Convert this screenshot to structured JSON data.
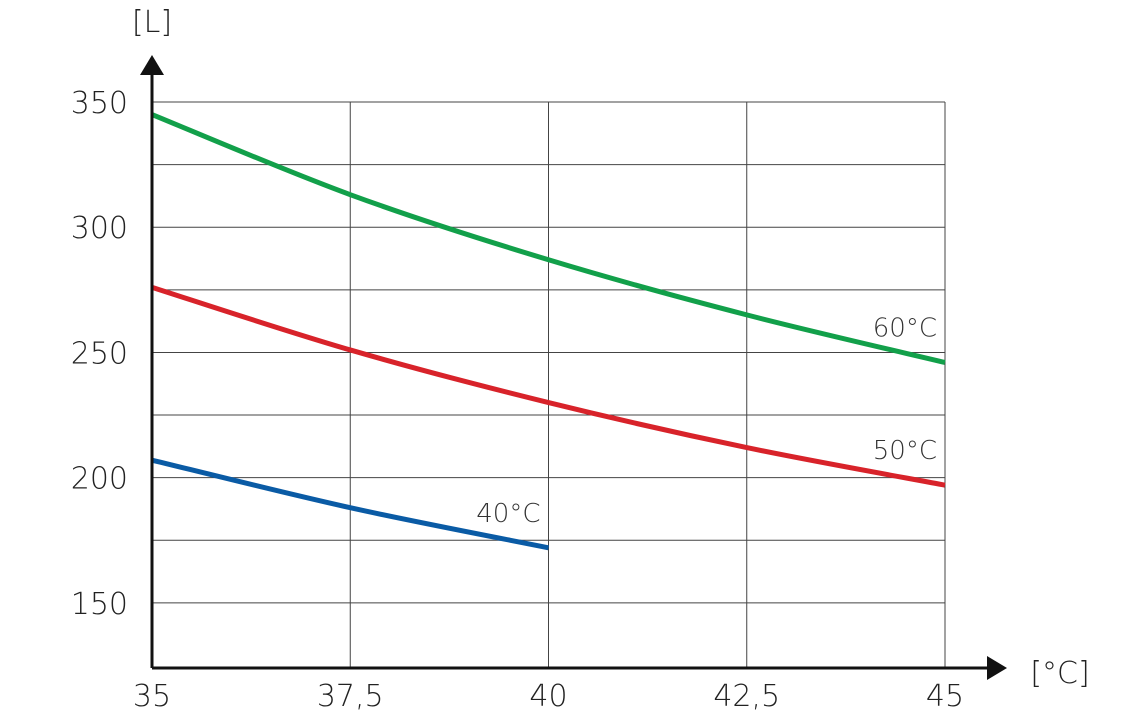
{
  "chart_data": {
    "type": "line",
    "xlabel": "[°C]",
    "ylabel": "[L]",
    "xlim": [
      35,
      45
    ],
    "ylim": [
      124,
      350
    ],
    "grid": true,
    "x_ticks": [
      "35",
      "37,5",
      "40",
      "42,5",
      "45"
    ],
    "y_ticks": [
      "150",
      "200",
      "250",
      "300",
      "350"
    ],
    "series": [
      {
        "name": "60°C",
        "color": "#12A04A",
        "x": [
          35,
          37.5,
          40,
          42.5,
          45
        ],
        "y": [
          345,
          313,
          287,
          265,
          246
        ]
      },
      {
        "name": "50°C",
        "color": "#D8232A",
        "x": [
          35,
          37.5,
          40,
          42.5,
          45
        ],
        "y": [
          276,
          251,
          230,
          212,
          197
        ]
      },
      {
        "name": "40°C",
        "color": "#0A5BA5",
        "x": [
          35,
          37.5,
          40
        ],
        "y": [
          207,
          188,
          172
        ]
      }
    ]
  }
}
